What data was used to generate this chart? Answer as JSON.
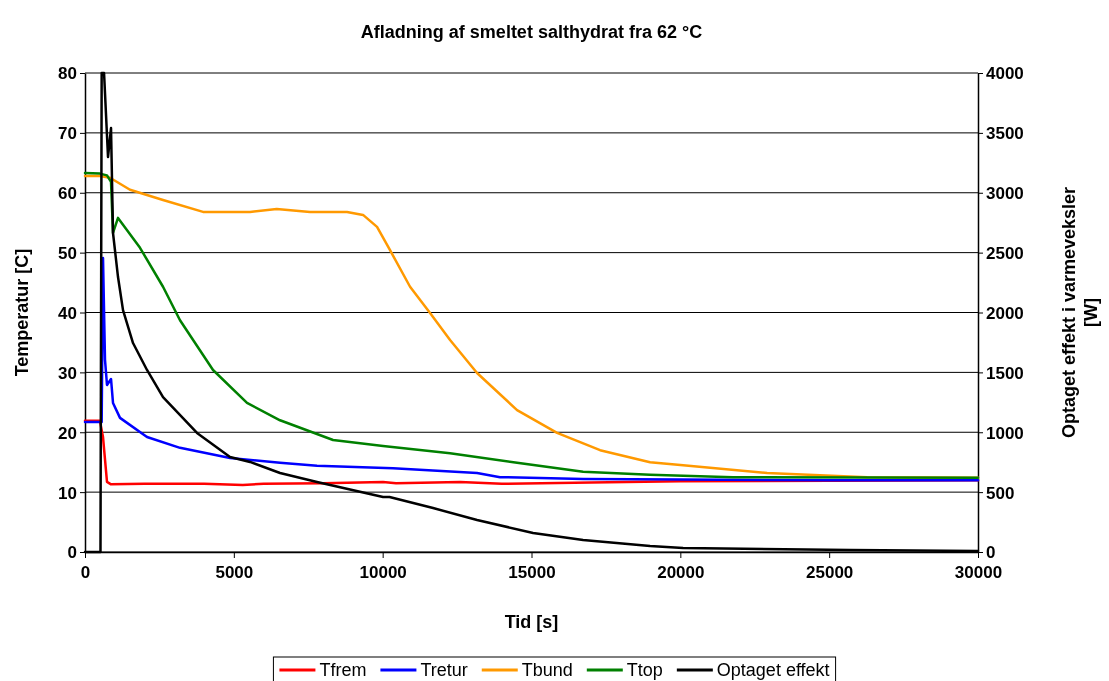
{
  "chart_data": {
    "type": "line",
    "title": "Afladning af smeltet salthydrat fra 62 °C",
    "xlabel": "Tid  [s]",
    "ylabel": "Temperatur  [C]",
    "y2label": "Optaget effekt i varmeveksler\n[W]",
    "xlim": [
      0,
      30000
    ],
    "xticks": [
      0,
      5000,
      10000,
      15000,
      20000,
      25000,
      30000
    ],
    "ylim": [
      0,
      80
    ],
    "yticks": [
      0,
      10,
      20,
      30,
      40,
      50,
      60,
      70,
      80
    ],
    "y2lim": [
      0,
      4000
    ],
    "y2ticks": [
      0,
      500,
      1000,
      1500,
      2000,
      2500,
      3000,
      3500,
      4000
    ],
    "grid": "y",
    "legend": "bottom",
    "marker": "none",
    "line_style": "solid",
    "series": [
      {
        "name": "Tfrem",
        "color": "#ff0000",
        "x": [
          0,
          500,
          605,
          739,
          874,
          2000,
          4000,
          5300,
          6000,
          8000,
          10013,
          10450,
          12600,
          14000,
          17000,
          20000,
          25000,
          30000
        ],
        "values": [
          21.9,
          21.9,
          19.2,
          11.7,
          11.3,
          11.4,
          11.4,
          11.2,
          11.4,
          11.5,
          11.7,
          11.5,
          11.7,
          11.4,
          11.6,
          11.8,
          11.9,
          12.0
        ]
      },
      {
        "name": "Tretur",
        "color": "#0000ff",
        "x": [
          0,
          500,
          560,
          605,
          672,
          739,
          874,
          941,
          1176,
          2083,
          3192,
          4872,
          6552,
          7795,
          10349,
          13171,
          13944,
          16733,
          20000,
          25000,
          30000
        ],
        "values": [
          21.7,
          21.7,
          21.7,
          49.1,
          32.1,
          27.9,
          28.9,
          24.9,
          22.4,
          19.2,
          17.4,
          15.7,
          14.9,
          14.4,
          14.0,
          13.2,
          12.5,
          12.2,
          12.1,
          12.0,
          12.0
        ]
      },
      {
        "name": "Tbund",
        "color": "#ff9900",
        "x": [
          0,
          500,
          840,
          1512,
          2621,
          3965,
          5544,
          6440,
          7560,
          8803,
          9341,
          9811,
          10248,
          10920,
          11592,
          12264,
          13171,
          14515,
          15859,
          17304,
          18984,
          20093,
          22915,
          26275,
          30000
        ],
        "values": [
          62.8,
          62.8,
          62.5,
          60.5,
          58.8,
          56.8,
          56.8,
          57.3,
          56.8,
          56.8,
          56.3,
          54.3,
          50.4,
          44.3,
          39.9,
          35.4,
          29.9,
          23.7,
          19.9,
          17.0,
          15.0,
          14.5,
          13.2,
          12.5,
          12.4
        ]
      },
      {
        "name": "Ttop",
        "color": "#008000",
        "x": [
          0,
          500,
          739,
          874,
          941,
          1109,
          1848,
          2621,
          3192,
          4301,
          5443,
          6552,
          8333,
          10013,
          12264,
          14515,
          16733,
          18984,
          21773,
          30000
        ],
        "values": [
          63.3,
          63.2,
          62.9,
          61.8,
          53.3,
          55.8,
          50.8,
          44.3,
          38.7,
          30.4,
          24.9,
          22.0,
          18.7,
          17.7,
          16.5,
          14.9,
          13.4,
          12.9,
          12.5,
          12.4
        ]
      },
      {
        "name": "Optaget effekt",
        "color": "#000000",
        "axis": "y2",
        "x": [
          0,
          520,
          560,
          640,
          773,
          874,
          941,
          1109,
          1277,
          1613,
          2083,
          2621,
          3763,
          4872,
          5544,
          6552,
          7795,
          10013,
          10230,
          11693,
          13171,
          15053,
          16733,
          18984,
          20093,
          25704,
          30000
        ],
        "values": [
          0,
          0,
          4000,
          4000,
          3298,
          3540,
          2664,
          2296,
          2020,
          1745,
          1520,
          1294,
          994,
          793,
          752,
          660,
          585,
          459,
          459,
          367,
          267,
          159,
          100,
          50,
          33,
          17,
          8
        ]
      }
    ]
  }
}
